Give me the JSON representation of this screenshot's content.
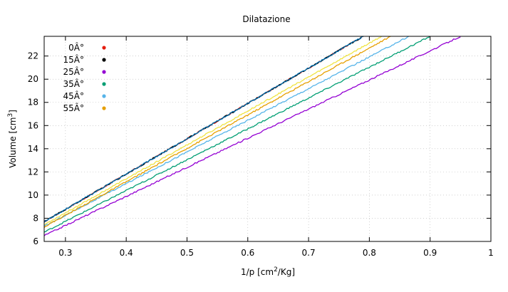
{
  "chart_data": {
    "type": "line",
    "title": "Dilatazione",
    "xlabel_base": "1/p [cm",
    "xlabel_sup": "2",
    "xlabel_tail": "/Kg]",
    "ylabel_base": "Volume [cm",
    "ylabel_sup": "3",
    "ylabel_tail": "]",
    "xlim": [
      0.265,
      1.0
    ],
    "ylim": [
      6,
      23.7
    ],
    "xticks": [
      0.3,
      0.4,
      0.5,
      0.6,
      0.7,
      0.8,
      0.9,
      1
    ],
    "xtick_labels": [
      "0.3",
      "0.4",
      "0.5",
      "0.6",
      "0.7",
      "0.8",
      "0.9",
      "1"
    ],
    "yticks": [
      6,
      8,
      10,
      12,
      14,
      16,
      18,
      20,
      22
    ],
    "ytick_labels": [
      "6",
      "8",
      "10",
      "12",
      "14",
      "16",
      "18",
      "20",
      "22"
    ],
    "grid": true,
    "legend_position": "top-left",
    "series": [
      {
        "name": "0Â°",
        "color": "#e51e10",
        "x": [
          0.265,
          0.79
        ],
        "y": [
          7.7,
          23.7
        ]
      },
      {
        "name": "15Â°",
        "color": "#000000",
        "x": [
          0.265,
          0.79
        ],
        "y": [
          7.7,
          23.7
        ]
      },
      {
        "name": "25Â°",
        "color": "#9400d3",
        "x": [
          0.265,
          0.95
        ],
        "y": [
          6.5,
          23.7
        ]
      },
      {
        "name": "35Â°",
        "color": "#009e73",
        "x": [
          0.265,
          0.9
        ],
        "y": [
          6.8,
          23.7
        ]
      },
      {
        "name": "45Â°",
        "color": "#56b4e9",
        "x": [
          0.265,
          0.865
        ],
        "y": [
          7.3,
          23.7
        ]
      },
      {
        "name": "55Â°",
        "color": "#e69f00",
        "x": [
          0.265,
          0.835
        ],
        "y": [
          7.25,
          23.7
        ]
      },
      {
        "name": "",
        "color": "#0072b2",
        "x": [
          0.265,
          0.79
        ],
        "y": [
          7.7,
          23.7
        ]
      },
      {
        "name": "",
        "color": "#f0e442",
        "x": [
          0.265,
          0.82
        ],
        "y": [
          7.45,
          23.7
        ]
      }
    ]
  }
}
